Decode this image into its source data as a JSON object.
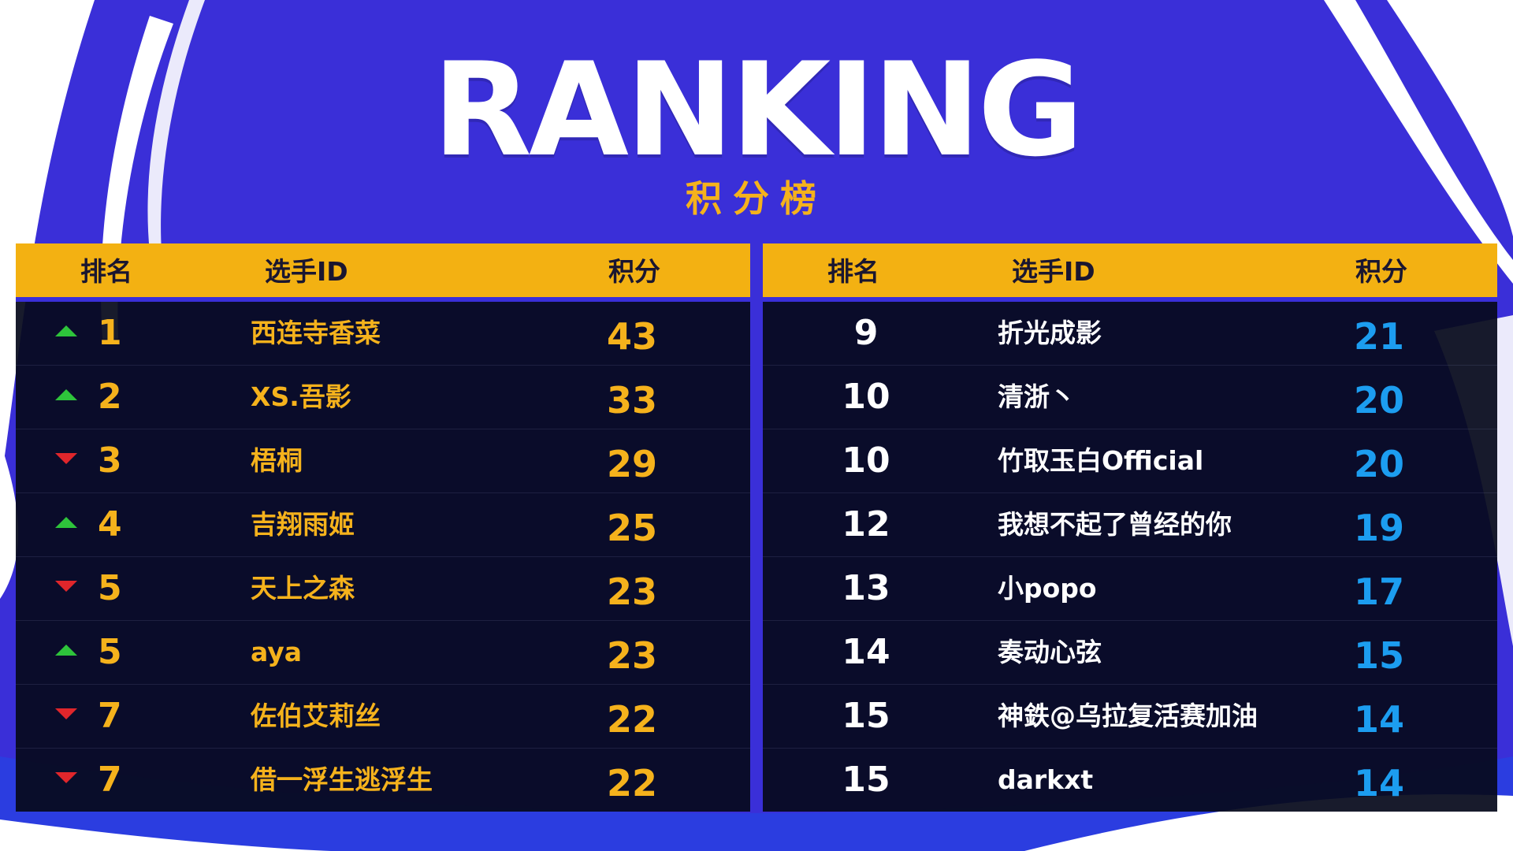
{
  "title": "RANKING",
  "subtitle": "积分榜",
  "colors": {
    "background_blue": "#3a2fd8",
    "accent_gold": "#f3b112",
    "row_dark": "#060a1c",
    "up_green": "#2ec43b",
    "down_red": "#e0262b",
    "score_blue": "#1c9df0"
  },
  "headers": {
    "rank": "排名",
    "player_id": "选手ID",
    "score": "积分"
  },
  "left_table": [
    {
      "trend": "up",
      "rank": "1",
      "player": "西连寺香菜",
      "score": "43"
    },
    {
      "trend": "up",
      "rank": "2",
      "player": "XS.吾影",
      "score": "33"
    },
    {
      "trend": "down",
      "rank": "3",
      "player": "梧桐",
      "score": "29"
    },
    {
      "trend": "up",
      "rank": "4",
      "player": "吉翔雨姬",
      "score": "25"
    },
    {
      "trend": "down",
      "rank": "5",
      "player": "天上之森",
      "score": "23"
    },
    {
      "trend": "up",
      "rank": "5",
      "player": "aya",
      "score": "23"
    },
    {
      "trend": "down",
      "rank": "7",
      "player": "佐伯艾莉丝",
      "score": "22"
    },
    {
      "trend": "down",
      "rank": "7",
      "player": "借一浮生逃浮生",
      "score": "22"
    }
  ],
  "right_table": [
    {
      "rank": "9",
      "player": "折光成影",
      "score": "21"
    },
    {
      "rank": "10",
      "player": "清浙丶",
      "score": "20"
    },
    {
      "rank": "10",
      "player": "竹取玉白Official",
      "score": "20"
    },
    {
      "rank": "12",
      "player": "我想不起了曾经的你",
      "score": "19"
    },
    {
      "rank": "13",
      "player": "小popo",
      "score": "17"
    },
    {
      "rank": "14",
      "player": "奏动心弦",
      "score": "15"
    },
    {
      "rank": "15",
      "player": "神鉄@乌拉复活赛加油",
      "score": "14"
    },
    {
      "rank": "15",
      "player": "darkxt",
      "score": "14"
    }
  ]
}
